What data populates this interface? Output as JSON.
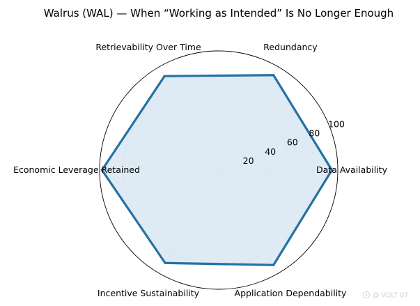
{
  "chart_data": {
    "type": "radar",
    "title": "Walrus (WAL) — When “Working as Intended” Is No Longer Enough",
    "axes": [
      "Data Availability",
      "Redundancy",
      "Retrievability Over Time",
      "Economic Leverage Retained",
      "Incentive Sustainability",
      "Application Dependability"
    ],
    "series": [
      {
        "values": [
          95,
          92,
          91,
          98,
          90,
          92
        ]
      }
    ],
    "rlim": [
      0,
      100
    ],
    "r_ticks": [
      20,
      40,
      60,
      80,
      100
    ],
    "r_tick_labels": [
      "20",
      "40",
      "60",
      "80",
      "100"
    ],
    "grid": true,
    "line_color": "#2471a3",
    "fill_color": "#d6e6f3"
  },
  "watermark": {
    "text": "@ VOLT 07"
  }
}
